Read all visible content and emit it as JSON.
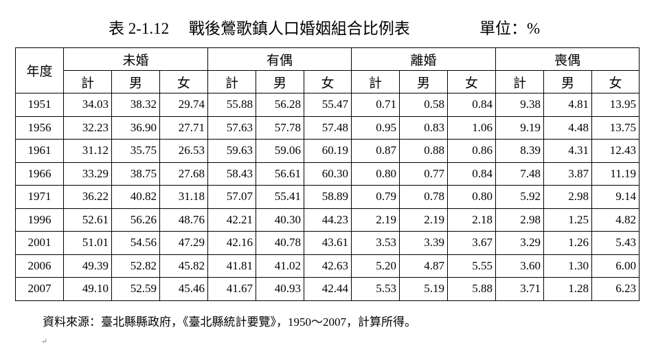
{
  "title": "表 2-1.12　 戰後鶯歌鎮人口婚姻組合比例表",
  "unit": "單位：%",
  "table": {
    "year_header": "年度",
    "groups": [
      "未婚",
      "有偶",
      "離婚",
      "喪偶"
    ],
    "subheaders": [
      "計",
      "男",
      "女"
    ],
    "rows": [
      {
        "year": "1951",
        "values": [
          "34.03",
          "38.32",
          "29.74",
          "55.88",
          "56.28",
          "55.47",
          "0.71",
          "0.58",
          "0.84",
          "9.38",
          "4.81",
          "13.95"
        ]
      },
      {
        "year": "1956",
        "values": [
          "32.23",
          "36.90",
          "27.71",
          "57.63",
          "57.78",
          "57.48",
          "0.95",
          "0.83",
          "1.06",
          "9.19",
          "4.48",
          "13.75"
        ]
      },
      {
        "year": "1961",
        "values": [
          "31.12",
          "35.75",
          "26.53",
          "59.63",
          "59.06",
          "60.19",
          "0.87",
          "0.88",
          "0.86",
          "8.39",
          "4.31",
          "12.43"
        ]
      },
      {
        "year": "1966",
        "values": [
          "33.29",
          "38.75",
          "27.68",
          "58.43",
          "56.61",
          "60.30",
          "0.80",
          "0.77",
          "0.84",
          "7.48",
          "3.87",
          "11.19"
        ]
      },
      {
        "year": "1971",
        "values": [
          "36.22",
          "40.82",
          "31.18",
          "57.07",
          "55.41",
          "58.89",
          "0.79",
          "0.78",
          "0.80",
          "5.92",
          "2.98",
          "9.14"
        ]
      },
      {
        "year": "1996",
        "values": [
          "52.61",
          "56.26",
          "48.76",
          "42.21",
          "40.30",
          "44.23",
          "2.19",
          "2.19",
          "2.18",
          "2.98",
          "1.25",
          "4.82"
        ]
      },
      {
        "year": "2001",
        "values": [
          "51.01",
          "54.56",
          "47.29",
          "42.16",
          "40.78",
          "43.61",
          "3.53",
          "3.39",
          "3.67",
          "3.29",
          "1.26",
          "5.43"
        ]
      },
      {
        "year": "2006",
        "values": [
          "49.39",
          "52.82",
          "45.82",
          "41.81",
          "41.02",
          "42.63",
          "5.20",
          "4.87",
          "5.55",
          "3.60",
          "1.30",
          "6.00"
        ]
      },
      {
        "year": "2007",
        "values": [
          "49.10",
          "52.59",
          "45.46",
          "41.67",
          "40.93",
          "42.44",
          "5.53",
          "5.19",
          "5.88",
          "3.71",
          "1.28",
          "6.23"
        ]
      }
    ]
  },
  "source": "資料來源：臺北縣縣政府，《臺北縣統計要覽》，1950～2007，計算所得。",
  "paragraph_mark": "↵"
}
